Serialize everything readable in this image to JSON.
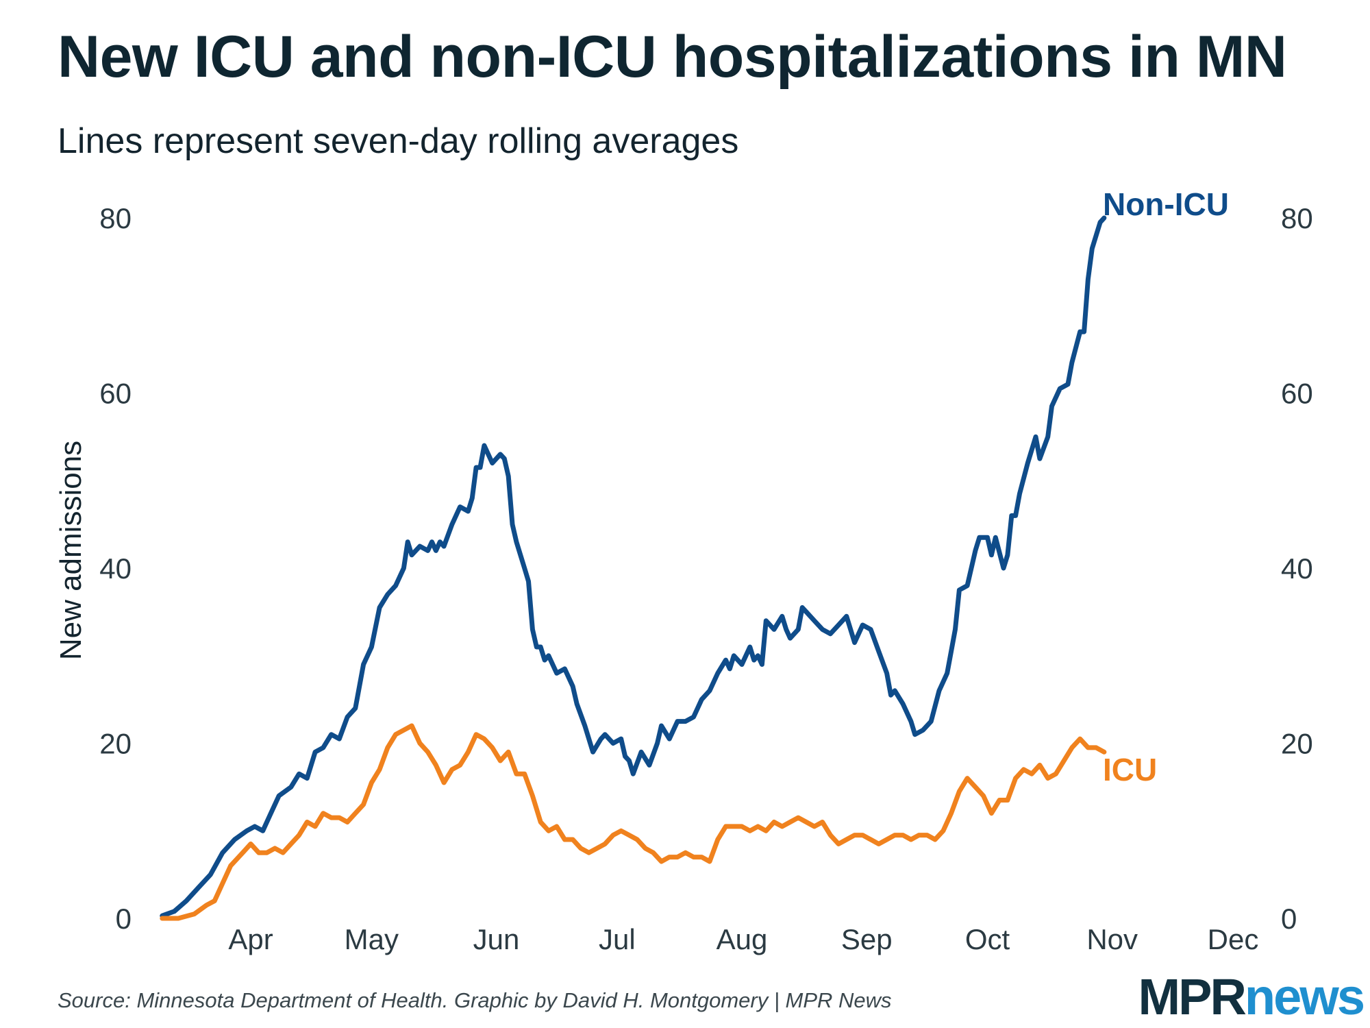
{
  "header": {
    "title": "New ICU and non-ICU hospitalizations in MN",
    "subtitle": "Lines represent seven-day rolling averages"
  },
  "footer": {
    "source": "Source: Minnesota Department of Health. Graphic by David H. Montgomery | MPR News",
    "logo_part1": "MPR",
    "logo_part2": "news"
  },
  "colors": {
    "non_icu": "#0f4c8a",
    "icu": "#f0821e",
    "logo_mpr": "#12303f",
    "logo_news": "#1f8fcf"
  },
  "chart_data": {
    "type": "line",
    "ylabel": "New admissions",
    "xlabel": "",
    "ylim": [
      0,
      80
    ],
    "yticks": [
      0,
      20,
      40,
      60,
      80
    ],
    "y_axis_both_sides": true,
    "grid": false,
    "x_range": [
      "2020-03-08",
      "2020-12-01"
    ],
    "xticks": [
      {
        "label": "Apr",
        "date": "2020-04-01"
      },
      {
        "label": "May",
        "date": "2020-05-01"
      },
      {
        "label": "Jun",
        "date": "2020-06-01"
      },
      {
        "label": "Jul",
        "date": "2020-07-01"
      },
      {
        "label": "Aug",
        "date": "2020-08-01"
      },
      {
        "label": "Sep",
        "date": "2020-09-01"
      },
      {
        "label": "Oct",
        "date": "2020-10-01"
      },
      {
        "label": "Nov",
        "date": "2020-11-01"
      },
      {
        "label": "Dec",
        "date": "2020-12-01"
      }
    ],
    "series": [
      {
        "name": "Non-ICU",
        "color": "#0f4c8a",
        "points": [
          [
            "2020-03-10",
            0.3
          ],
          [
            "2020-03-13",
            0.8
          ],
          [
            "2020-03-16",
            2
          ],
          [
            "2020-03-19",
            3.5
          ],
          [
            "2020-03-22",
            5
          ],
          [
            "2020-03-25",
            7.5
          ],
          [
            "2020-03-28",
            9
          ],
          [
            "2020-03-31",
            10
          ],
          [
            "2020-04-02",
            10.5
          ],
          [
            "2020-04-04",
            10
          ],
          [
            "2020-04-06",
            12
          ],
          [
            "2020-04-08",
            14
          ],
          [
            "2020-04-11",
            15
          ],
          [
            "2020-04-13",
            16.5
          ],
          [
            "2020-04-15",
            16
          ],
          [
            "2020-04-17",
            19
          ],
          [
            "2020-04-19",
            19.5
          ],
          [
            "2020-04-21",
            21
          ],
          [
            "2020-04-23",
            20.5
          ],
          [
            "2020-04-25",
            23
          ],
          [
            "2020-04-27",
            24
          ],
          [
            "2020-04-29",
            29
          ],
          [
            "2020-05-01",
            31
          ],
          [
            "2020-05-03",
            35.5
          ],
          [
            "2020-05-05",
            37
          ],
          [
            "2020-05-07",
            38
          ],
          [
            "2020-05-09",
            40
          ],
          [
            "2020-05-10",
            43
          ],
          [
            "2020-05-11",
            41.5
          ],
          [
            "2020-05-13",
            42.5
          ],
          [
            "2020-05-15",
            42
          ],
          [
            "2020-05-16",
            43
          ],
          [
            "2020-05-17",
            42
          ],
          [
            "2020-05-18",
            43
          ],
          [
            "2020-05-19",
            42.5
          ],
          [
            "2020-05-21",
            45
          ],
          [
            "2020-05-23",
            47
          ],
          [
            "2020-05-25",
            46.5
          ],
          [
            "2020-05-26",
            48
          ],
          [
            "2020-05-27",
            51.5
          ],
          [
            "2020-05-28",
            51.5
          ],
          [
            "2020-05-29",
            54
          ],
          [
            "2020-05-31",
            52
          ],
          [
            "2020-06-02",
            53
          ],
          [
            "2020-06-03",
            52.5
          ],
          [
            "2020-06-04",
            50.5
          ],
          [
            "2020-06-05",
            45
          ],
          [
            "2020-06-06",
            43
          ],
          [
            "2020-06-08",
            40
          ],
          [
            "2020-06-09",
            38.5
          ],
          [
            "2020-06-10",
            33
          ],
          [
            "2020-06-11",
            31
          ],
          [
            "2020-06-12",
            31
          ],
          [
            "2020-06-13",
            29.5
          ],
          [
            "2020-06-14",
            30
          ],
          [
            "2020-06-16",
            28
          ],
          [
            "2020-06-18",
            28.5
          ],
          [
            "2020-06-20",
            26.5
          ],
          [
            "2020-06-21",
            24.5
          ],
          [
            "2020-06-23",
            22
          ],
          [
            "2020-06-25",
            19
          ],
          [
            "2020-06-27",
            20.5
          ],
          [
            "2020-06-28",
            21
          ],
          [
            "2020-06-30",
            20
          ],
          [
            "2020-07-02",
            20.5
          ],
          [
            "2020-07-03",
            18.5
          ],
          [
            "2020-07-04",
            18
          ],
          [
            "2020-07-05",
            16.5
          ],
          [
            "2020-07-07",
            19
          ],
          [
            "2020-07-09",
            17.5
          ],
          [
            "2020-07-11",
            20
          ],
          [
            "2020-07-12",
            22
          ],
          [
            "2020-07-14",
            20.5
          ],
          [
            "2020-07-16",
            22.5
          ],
          [
            "2020-07-18",
            22.5
          ],
          [
            "2020-07-20",
            23
          ],
          [
            "2020-07-22",
            25
          ],
          [
            "2020-07-24",
            26
          ],
          [
            "2020-07-26",
            28
          ],
          [
            "2020-07-28",
            29.5
          ],
          [
            "2020-07-29",
            28.5
          ],
          [
            "2020-07-30",
            30
          ],
          [
            "2020-08-01",
            29
          ],
          [
            "2020-08-03",
            31
          ],
          [
            "2020-08-04",
            29.5
          ],
          [
            "2020-08-05",
            30
          ],
          [
            "2020-08-06",
            29
          ],
          [
            "2020-08-07",
            34
          ],
          [
            "2020-08-09",
            33
          ],
          [
            "2020-08-11",
            34.5
          ],
          [
            "2020-08-12",
            33
          ],
          [
            "2020-08-13",
            32
          ],
          [
            "2020-08-15",
            33
          ],
          [
            "2020-08-16",
            35.5
          ],
          [
            "2020-08-17",
            35
          ],
          [
            "2020-08-19",
            34
          ],
          [
            "2020-08-21",
            33
          ],
          [
            "2020-08-23",
            32.5
          ],
          [
            "2020-08-25",
            33.5
          ],
          [
            "2020-08-27",
            34.5
          ],
          [
            "2020-08-29",
            31.5
          ],
          [
            "2020-08-31",
            33.5
          ],
          [
            "2020-09-02",
            33
          ],
          [
            "2020-09-04",
            30.5
          ],
          [
            "2020-09-06",
            28
          ],
          [
            "2020-09-07",
            25.5
          ],
          [
            "2020-09-08",
            26
          ],
          [
            "2020-09-10",
            24.5
          ],
          [
            "2020-09-12",
            22.5
          ],
          [
            "2020-09-13",
            21
          ],
          [
            "2020-09-15",
            21.5
          ],
          [
            "2020-09-17",
            22.5
          ],
          [
            "2020-09-19",
            26
          ],
          [
            "2020-09-21",
            28
          ],
          [
            "2020-09-22",
            30.5
          ],
          [
            "2020-09-23",
            33
          ],
          [
            "2020-09-24",
            37.5
          ],
          [
            "2020-09-26",
            38
          ],
          [
            "2020-09-28",
            42
          ],
          [
            "2020-09-29",
            43.5
          ],
          [
            "2020-10-01",
            43.5
          ],
          [
            "2020-10-02",
            41.5
          ],
          [
            "2020-10-03",
            43.5
          ],
          [
            "2020-10-05",
            40
          ],
          [
            "2020-10-06",
            41.5
          ],
          [
            "2020-10-07",
            46
          ],
          [
            "2020-10-08",
            46
          ],
          [
            "2020-10-09",
            48.5
          ],
          [
            "2020-10-11",
            52
          ],
          [
            "2020-10-13",
            55
          ],
          [
            "2020-10-14",
            52.5
          ],
          [
            "2020-10-16",
            55
          ],
          [
            "2020-10-17",
            58.5
          ],
          [
            "2020-10-19",
            60.5
          ],
          [
            "2020-10-21",
            61
          ],
          [
            "2020-10-22",
            63.5
          ],
          [
            "2020-10-24",
            67
          ],
          [
            "2020-10-25",
            67
          ],
          [
            "2020-10-26",
            73
          ],
          [
            "2020-10-27",
            76.5
          ],
          [
            "2020-10-29",
            79.5
          ],
          [
            "2020-10-30",
            80
          ]
        ]
      },
      {
        "name": "ICU",
        "color": "#f0821e",
        "points": [
          [
            "2020-03-10",
            0
          ],
          [
            "2020-03-14",
            0
          ],
          [
            "2020-03-18",
            0.5
          ],
          [
            "2020-03-21",
            1.5
          ],
          [
            "2020-03-23",
            2
          ],
          [
            "2020-03-25",
            4
          ],
          [
            "2020-03-27",
            6
          ],
          [
            "2020-03-30",
            7.5
          ],
          [
            "2020-04-01",
            8.5
          ],
          [
            "2020-04-03",
            7.5
          ],
          [
            "2020-04-05",
            7.5
          ],
          [
            "2020-04-07",
            8
          ],
          [
            "2020-04-09",
            7.5
          ],
          [
            "2020-04-11",
            8.5
          ],
          [
            "2020-04-13",
            9.5
          ],
          [
            "2020-04-15",
            11
          ],
          [
            "2020-04-17",
            10.5
          ],
          [
            "2020-04-19",
            12
          ],
          [
            "2020-04-21",
            11.5
          ],
          [
            "2020-04-23",
            11.5
          ],
          [
            "2020-04-25",
            11
          ],
          [
            "2020-04-27",
            12
          ],
          [
            "2020-04-29",
            13
          ],
          [
            "2020-05-01",
            15.5
          ],
          [
            "2020-05-03",
            17
          ],
          [
            "2020-05-05",
            19.5
          ],
          [
            "2020-05-07",
            21
          ],
          [
            "2020-05-09",
            21.5
          ],
          [
            "2020-05-11",
            22
          ],
          [
            "2020-05-13",
            20
          ],
          [
            "2020-05-15",
            19
          ],
          [
            "2020-05-17",
            17.5
          ],
          [
            "2020-05-19",
            15.5
          ],
          [
            "2020-05-21",
            17
          ],
          [
            "2020-05-23",
            17.5
          ],
          [
            "2020-05-25",
            19
          ],
          [
            "2020-05-27",
            21
          ],
          [
            "2020-05-29",
            20.5
          ],
          [
            "2020-05-31",
            19.5
          ],
          [
            "2020-06-02",
            18
          ],
          [
            "2020-06-04",
            19
          ],
          [
            "2020-06-06",
            16.5
          ],
          [
            "2020-06-08",
            16.5
          ],
          [
            "2020-06-10",
            14
          ],
          [
            "2020-06-12",
            11
          ],
          [
            "2020-06-14",
            10
          ],
          [
            "2020-06-16",
            10.5
          ],
          [
            "2020-06-18",
            9
          ],
          [
            "2020-06-20",
            9
          ],
          [
            "2020-06-22",
            8
          ],
          [
            "2020-06-24",
            7.5
          ],
          [
            "2020-06-26",
            8
          ],
          [
            "2020-06-28",
            8.5
          ],
          [
            "2020-06-30",
            9.5
          ],
          [
            "2020-07-02",
            10
          ],
          [
            "2020-07-04",
            9.5
          ],
          [
            "2020-07-06",
            9
          ],
          [
            "2020-07-08",
            8
          ],
          [
            "2020-07-10",
            7.5
          ],
          [
            "2020-07-12",
            6.5
          ],
          [
            "2020-07-14",
            7
          ],
          [
            "2020-07-16",
            7
          ],
          [
            "2020-07-18",
            7.5
          ],
          [
            "2020-07-20",
            7
          ],
          [
            "2020-07-22",
            7
          ],
          [
            "2020-07-24",
            6.5
          ],
          [
            "2020-07-26",
            9
          ],
          [
            "2020-07-28",
            10.5
          ],
          [
            "2020-07-30",
            10.5
          ],
          [
            "2020-08-01",
            10.5
          ],
          [
            "2020-08-03",
            10
          ],
          [
            "2020-08-05",
            10.5
          ],
          [
            "2020-08-07",
            10
          ],
          [
            "2020-08-09",
            11
          ],
          [
            "2020-08-11",
            10.5
          ],
          [
            "2020-08-13",
            11
          ],
          [
            "2020-08-15",
            11.5
          ],
          [
            "2020-08-17",
            11
          ],
          [
            "2020-08-19",
            10.5
          ],
          [
            "2020-08-21",
            11
          ],
          [
            "2020-08-23",
            9.5
          ],
          [
            "2020-08-25",
            8.5
          ],
          [
            "2020-08-27",
            9
          ],
          [
            "2020-08-29",
            9.5
          ],
          [
            "2020-08-31",
            9.5
          ],
          [
            "2020-09-02",
            9
          ],
          [
            "2020-09-04",
            8.5
          ],
          [
            "2020-09-06",
            9
          ],
          [
            "2020-09-08",
            9.5
          ],
          [
            "2020-09-10",
            9.5
          ],
          [
            "2020-09-12",
            9
          ],
          [
            "2020-09-14",
            9.5
          ],
          [
            "2020-09-16",
            9.5
          ],
          [
            "2020-09-18",
            9
          ],
          [
            "2020-09-20",
            10
          ],
          [
            "2020-09-22",
            12
          ],
          [
            "2020-09-24",
            14.5
          ],
          [
            "2020-09-26",
            16
          ],
          [
            "2020-09-28",
            15
          ],
          [
            "2020-09-30",
            14
          ],
          [
            "2020-10-02",
            12
          ],
          [
            "2020-10-04",
            13.5
          ],
          [
            "2020-10-06",
            13.5
          ],
          [
            "2020-10-08",
            16
          ],
          [
            "2020-10-10",
            17
          ],
          [
            "2020-10-12",
            16.5
          ],
          [
            "2020-10-14",
            17.5
          ],
          [
            "2020-10-16",
            16
          ],
          [
            "2020-10-18",
            16.5
          ],
          [
            "2020-10-20",
            18
          ],
          [
            "2020-10-22",
            19.5
          ],
          [
            "2020-10-24",
            20.5
          ],
          [
            "2020-10-26",
            19.5
          ],
          [
            "2020-10-28",
            19.5
          ],
          [
            "2020-10-30",
            19
          ]
        ]
      }
    ]
  }
}
